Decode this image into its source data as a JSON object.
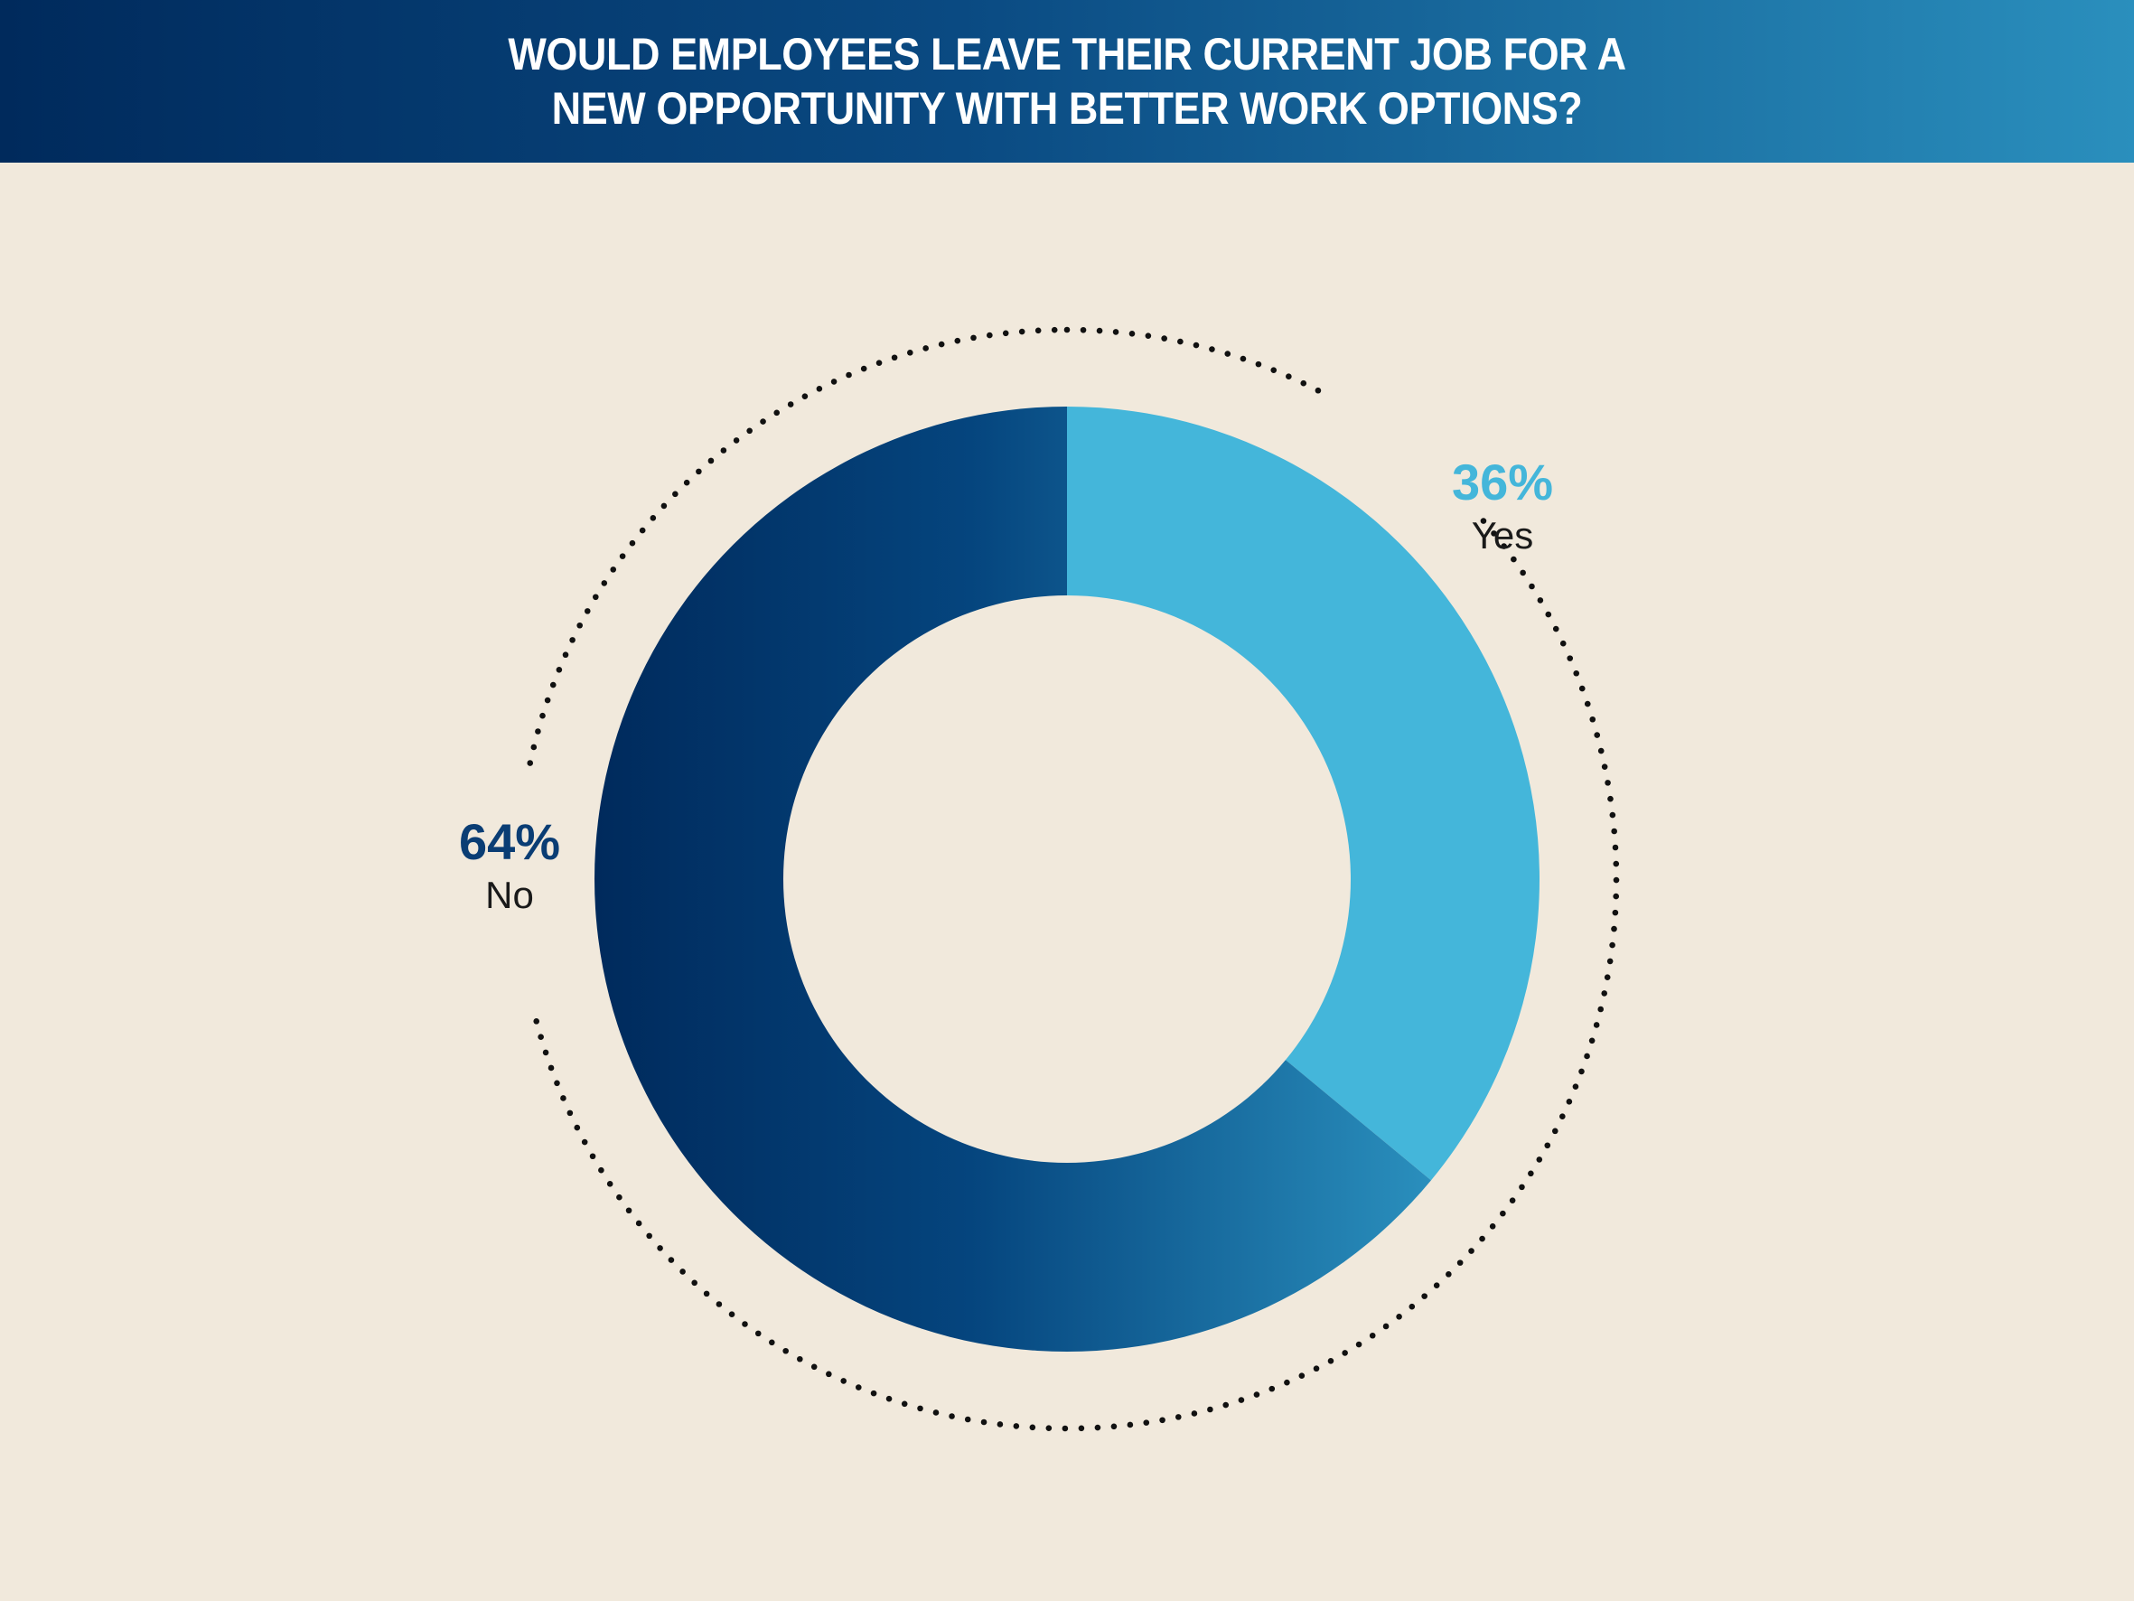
{
  "chart_data": {
    "type": "pie",
    "title": "WOULD EMPLOYEES LEAVE THEIR CURRENT JOB FOR A NEW OPPORTUNITY WITH BETTER WORK OPTIONS?",
    "donut": true,
    "categories": [
      "Yes",
      "No"
    ],
    "values": [
      36,
      64
    ],
    "value_labels": [
      "36%",
      "64%"
    ],
    "colors": {
      "Yes": "#44b6da",
      "No_gradient_start": "#002a5c",
      "No_gradient_mid": "#05457e",
      "No_gradient_end": "#2a8fbd",
      "No_label": "#0a3d74",
      "Yes_label": "#44b6da",
      "background": "#f1e9dc"
    },
    "legend": "none"
  }
}
